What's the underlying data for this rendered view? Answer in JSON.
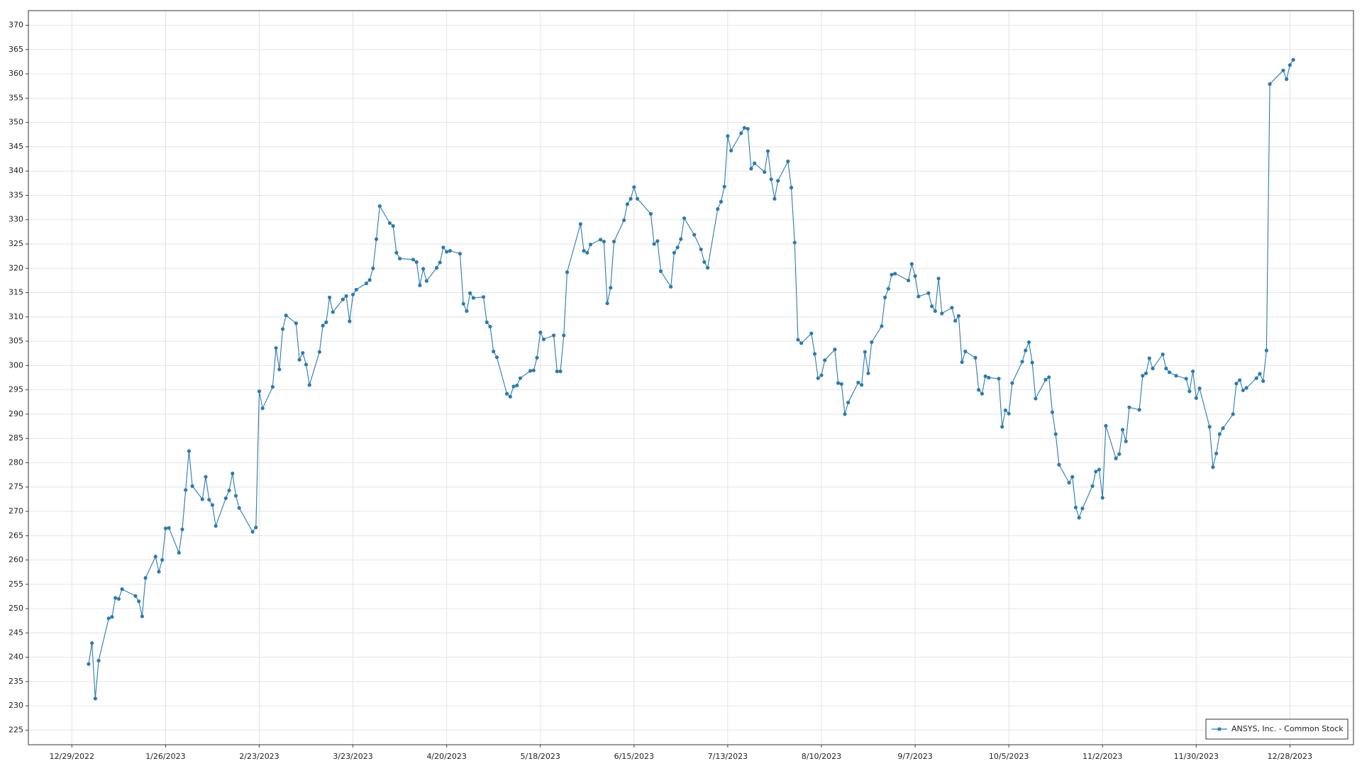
{
  "chart_data": {
    "type": "line",
    "legend": "lower right",
    "grid": true,
    "x": [
      "1/3/2023",
      "1/4/2023",
      "1/5/2023",
      "1/6/2023",
      "1/9/2023",
      "1/10/2023",
      "1/11/2023",
      "1/12/2023",
      "1/13/2023",
      "1/17/2023",
      "1/18/2023",
      "1/19/2023",
      "1/20/2023",
      "1/23/2023",
      "1/24/2023",
      "1/25/2023",
      "1/26/2023",
      "1/27/2023",
      "1/30/2023",
      "1/31/2023",
      "2/1/2023",
      "2/2/2023",
      "2/3/2023",
      "2/6/2023",
      "2/7/2023",
      "2/8/2023",
      "2/9/2023",
      "2/10/2023",
      "2/13/2023",
      "2/14/2023",
      "2/15/2023",
      "2/16/2023",
      "2/17/2023",
      "2/21/2023",
      "2/22/2023",
      "2/23/2023",
      "2/24/2023",
      "2/27/2023",
      "2/28/2023",
      "3/1/2023",
      "3/2/2023",
      "3/3/2023",
      "3/6/2023",
      "3/7/2023",
      "3/8/2023",
      "3/9/2023",
      "3/10/2023",
      "3/13/2023",
      "3/14/2023",
      "3/15/2023",
      "3/16/2023",
      "3/17/2023",
      "3/20/2023",
      "3/21/2023",
      "3/22/2023",
      "3/23/2023",
      "3/24/2023",
      "3/27/2023",
      "3/28/2023",
      "3/29/2023",
      "3/30/2023",
      "3/31/2023",
      "4/3/2023",
      "4/4/2023",
      "4/5/2023",
      "4/6/2023",
      "4/10/2023",
      "4/11/2023",
      "4/12/2023",
      "4/13/2023",
      "4/14/2023",
      "4/17/2023",
      "4/18/2023",
      "4/19/2023",
      "4/20/2023",
      "4/21/2023",
      "4/24/2023",
      "4/25/2023",
      "4/26/2023",
      "4/27/2023",
      "4/28/2023",
      "5/1/2023",
      "5/2/2023",
      "5/3/2023",
      "5/4/2023",
      "5/5/2023",
      "5/8/2023",
      "5/9/2023",
      "5/10/2023",
      "5/11/2023",
      "5/12/2023",
      "5/15/2023",
      "5/16/2023",
      "5/17/2023",
      "5/18/2023",
      "5/19/2023",
      "5/22/2023",
      "5/23/2023",
      "5/24/2023",
      "5/25/2023",
      "5/26/2023",
      "5/30/2023",
      "5/31/2023",
      "6/1/2023",
      "6/2/2023",
      "6/5/2023",
      "6/6/2023",
      "6/7/2023",
      "6/8/2023",
      "6/9/2023",
      "6/12/2023",
      "6/13/2023",
      "6/14/2023",
      "6/15/2023",
      "6/16/2023",
      "6/20/2023",
      "6/21/2023",
      "6/22/2023",
      "6/23/2023",
      "6/26/2023",
      "6/27/2023",
      "6/28/2023",
      "6/29/2023",
      "6/30/2023",
      "7/3/2023",
      "7/5/2023",
      "7/6/2023",
      "7/7/2023",
      "7/10/2023",
      "7/11/2023",
      "7/12/2023",
      "7/13/2023",
      "7/14/2023",
      "7/17/2023",
      "7/18/2023",
      "7/19/2023",
      "7/20/2023",
      "7/21/2023",
      "7/24/2023",
      "7/25/2023",
      "7/26/2023",
      "7/27/2023",
      "7/28/2023",
      "7/31/2023",
      "8/1/2023",
      "8/2/2023",
      "8/3/2023",
      "8/4/2023",
      "8/7/2023",
      "8/8/2023",
      "8/9/2023",
      "8/10/2023",
      "8/11/2023",
      "8/14/2023",
      "8/15/2023",
      "8/16/2023",
      "8/17/2023",
      "8/18/2023",
      "8/21/2023",
      "8/22/2023",
      "8/23/2023",
      "8/24/2023",
      "8/25/2023",
      "8/28/2023",
      "8/29/2023",
      "8/30/2023",
      "8/31/2023",
      "9/1/2023",
      "9/5/2023",
      "9/6/2023",
      "9/7/2023",
      "9/8/2023",
      "9/11/2023",
      "9/12/2023",
      "9/13/2023",
      "9/14/2023",
      "9/15/2023",
      "9/18/2023",
      "9/19/2023",
      "9/20/2023",
      "9/21/2023",
      "9/22/2023",
      "9/25/2023",
      "9/26/2023",
      "9/27/2023",
      "9/28/2023",
      "9/29/2023",
      "10/2/2023",
      "10/3/2023",
      "10/4/2023",
      "10/5/2023",
      "10/6/2023",
      "10/9/2023",
      "10/10/2023",
      "10/11/2023",
      "10/12/2023",
      "10/13/2023",
      "10/16/2023",
      "10/17/2023",
      "10/18/2023",
      "10/19/2023",
      "10/20/2023",
      "10/23/2023",
      "10/24/2023",
      "10/25/2023",
      "10/26/2023",
      "10/27/2023",
      "10/30/2023",
      "10/31/2023",
      "11/1/2023",
      "11/2/2023",
      "11/3/2023",
      "11/6/2023",
      "11/7/2023",
      "11/8/2023",
      "11/9/2023",
      "11/10/2023",
      "11/13/2023",
      "11/14/2023",
      "11/15/2023",
      "11/16/2023",
      "11/17/2023",
      "11/20/2023",
      "11/21/2023",
      "11/22/2023",
      "11/24/2023",
      "11/27/2023",
      "11/28/2023",
      "11/29/2023",
      "11/30/2023",
      "12/1/2023",
      "12/4/2023",
      "12/5/2023",
      "12/6/2023",
      "12/7/2023",
      "12/8/2023",
      "12/11/2023",
      "12/12/2023",
      "12/13/2023",
      "12/14/2023",
      "12/15/2023",
      "12/18/2023",
      "12/19/2023",
      "12/20/2023",
      "12/21/2023",
      "12/22/2023",
      "12/26/2023",
      "12/27/2023",
      "12/28/2023",
      "12/29/2023"
    ],
    "series": [
      {
        "name": "ANSYS, Inc. - Common Stock",
        "color": "#2b7bb0",
        "values": [
          238.6,
          242.9,
          231.5,
          239.3,
          248.0,
          248.3,
          252.2,
          252.0,
          254.0,
          252.6,
          251.5,
          248.4,
          256.3,
          260.7,
          257.6,
          260.0,
          266.5,
          266.6,
          261.5,
          266.3,
          274.4,
          282.4,
          275.2,
          272.5,
          277.1,
          272.4,
          271.3,
          267.0,
          272.7,
          274.3,
          277.8,
          273.2,
          270.7,
          265.8,
          266.7,
          294.7,
          291.2,
          295.6,
          303.6,
          299.2,
          307.5,
          310.3,
          308.7,
          301.2,
          302.6,
          300.2,
          296.0,
          302.8,
          308.2,
          308.9,
          314.0,
          311.0,
          313.6,
          314.3,
          309.1,
          314.6,
          315.6,
          316.9,
          317.6,
          320.0,
          326.0,
          332.8,
          329.3,
          328.7,
          323.2,
          322.0,
          321.8,
          321.3,
          316.5,
          319.9,
          317.4,
          320.1,
          321.2,
          324.3,
          323.4,
          323.6,
          323.0,
          312.7,
          311.2,
          314.9,
          313.9,
          314.1,
          308.9,
          308.0,
          302.9,
          301.7,
          294.2,
          293.6,
          295.7,
          295.9,
          297.4,
          298.9,
          299.0,
          301.6,
          306.8,
          305.4,
          306.2,
          298.8,
          298.8,
          306.2,
          319.2,
          329.1,
          323.6,
          323.2,
          324.9,
          325.9,
          325.5,
          312.8,
          316.0,
          325.5,
          329.9,
          333.2,
          334.3,
          336.7,
          334.3,
          331.2,
          325.0,
          325.6,
          319.4,
          316.2,
          323.2,
          324.3,
          326.0,
          330.3,
          326.9,
          323.9,
          321.3,
          320.1,
          332.2,
          333.7,
          336.8,
          347.2,
          344.2,
          347.8,
          348.9,
          348.7,
          340.5,
          341.6,
          339.8,
          344.1,
          338.3,
          334.3,
          338.0,
          342.0,
          336.6,
          325.3,
          305.3,
          304.6,
          306.6,
          302.4,
          297.4,
          298.0,
          301.1,
          303.3,
          296.4,
          296.2,
          290.0,
          292.4,
          296.5,
          296.0,
          302.8,
          298.4,
          304.8,
          308.1,
          314.0,
          315.8,
          318.7,
          318.9,
          317.5,
          320.9,
          318.4,
          314.2,
          314.9,
          312.2,
          311.2,
          317.9,
          310.7,
          311.9,
          309.2,
          310.2,
          300.7,
          302.9,
          301.6,
          295.0,
          294.2,
          297.8,
          297.5,
          297.3,
          287.4,
          290.8,
          290.1,
          296.4,
          300.8,
          303.1,
          304.8,
          300.6,
          293.2,
          297.1,
          297.6,
          290.4,
          285.9,
          279.6,
          275.9,
          277.1,
          270.8,
          268.7,
          270.6,
          275.2,
          278.2,
          278.6,
          272.8,
          287.6,
          280.9,
          281.8,
          286.8,
          284.4,
          291.4,
          290.9,
          297.9,
          298.4,
          301.5,
          299.4,
          302.3,
          299.4,
          298.6,
          297.9,
          297.3,
          294.7,
          298.8,
          293.3,
          295.3,
          287.4,
          279.1,
          281.9,
          285.9,
          287.1,
          290.0,
          296.3,
          297.0,
          294.9,
          295.4,
          297.4,
          298.3,
          296.8,
          303.1,
          357.9,
          360.7,
          358.9,
          361.8,
          362.9
        ]
      }
    ],
    "xlim": [
      "12/16/2022",
      "1/16/2024"
    ],
    "xticks": [
      "12/29/2022",
      "1/26/2023",
      "2/23/2023",
      "3/23/2023",
      "4/20/2023",
      "5/18/2023",
      "6/15/2023",
      "7/13/2023",
      "8/10/2023",
      "9/7/2023",
      "10/5/2023",
      "11/2/2023",
      "11/30/2023",
      "12/28/2023"
    ],
    "ylim": [
      222,
      373
    ],
    "yticks": [
      225,
      230,
      235,
      240,
      245,
      250,
      255,
      260,
      265,
      270,
      275,
      280,
      285,
      290,
      295,
      300,
      305,
      310,
      315,
      320,
      325,
      330,
      335,
      340,
      345,
      350,
      355,
      360,
      365,
      370
    ]
  }
}
